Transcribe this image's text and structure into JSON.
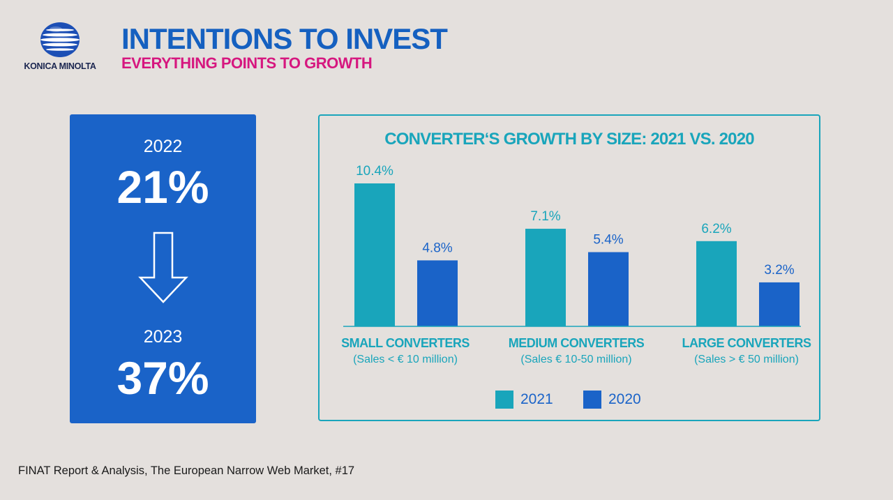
{
  "brand": {
    "name": "KONICA MINOLTA",
    "logo_icon": "globe-logo-icon",
    "logo_color": "#1c4fb5"
  },
  "header": {
    "title": "INTENTIONS TO INVEST",
    "subtitle": "EVERYTHING POINTS TO GROWTH"
  },
  "stats": {
    "first": {
      "year": "2022",
      "value": "21%"
    },
    "arrow_icon": "down-arrow-icon",
    "second": {
      "year": "2023",
      "value": "37%"
    },
    "panel_color": "#1a63c8"
  },
  "colors": {
    "teal": "#19a5bb",
    "blue": "#1a63c8",
    "magenta": "#d6177f",
    "background": "#e4e0dd"
  },
  "chart_data": {
    "type": "bar",
    "title": "CONVERTER‘S GROWTH BY SIZE: 2021 VS. 2020",
    "categories": [
      {
        "name": "SMALL CONVERTERS",
        "sub": "(Sales < € 10 million)"
      },
      {
        "name": "MEDIUM CONVERTERS",
        "sub": "(Sales  € 10-50 million)"
      },
      {
        "name": "LARGE CONVERTERS",
        "sub": "(Sales  > € 50 million)"
      }
    ],
    "series": [
      {
        "name": "2021",
        "color": "#19a5bb",
        "values": [
          10.4,
          7.1,
          6.2
        ],
        "labels": [
          "10.4%",
          "7.1%",
          "6.2%"
        ]
      },
      {
        "name": "2020",
        "color": "#1a63c8",
        "values": [
          4.8,
          5.4,
          3.2
        ],
        "labels": [
          "4.8%",
          "5.4%",
          "3.2%"
        ]
      }
    ],
    "ylim": [
      0,
      10.4
    ],
    "grid": false,
    "legend": "bottom-center",
    "xlabel": "",
    "ylabel": ""
  },
  "footer": {
    "source": "FINAT Report & Analysis, The European Narrow Web Market, #17"
  }
}
